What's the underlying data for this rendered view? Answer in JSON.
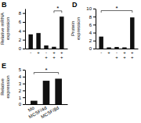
{
  "chart_data": [
    {
      "type": "bar",
      "title": "B",
      "categories": [
        "-",
        "+",
        "-\n+",
        "+\n+",
        "+\n+"
      ],
      "values": [
        3.2,
        3.5,
        0.7,
        0.4,
        7.2
      ],
      "color": "#111111",
      "y_label": "Relative mRNA\nexpression",
      "ylim": [
        0,
        9
      ],
      "yticks": [
        0,
        2,
        4,
        6,
        8
      ],
      "annotations": [
        {
          "text": "*",
          "from": 3,
          "to": 4,
          "y": 8.5
        }
      ]
    },
    {
      "type": "bar",
      "title": "D",
      "categories": [
        "-",
        "+",
        "-\n+",
        "+\n+",
        "+\n+"
      ],
      "values": [
        3.0,
        0.3,
        0.4,
        0.3,
        7.8
      ],
      "color": "#111111",
      "y_label": "Protein\nexpression",
      "ylim": [
        0,
        10
      ],
      "yticks": [
        0,
        2,
        4,
        6,
        8,
        10
      ],
      "annotations": [
        {
          "text": "*",
          "from": 0,
          "to": 4,
          "y": 9.5
        }
      ]
    },
    {
      "type": "bar",
      "title": "E",
      "categories": [
        "Mo",
        "MCSF/4d",
        "MCSF/8d"
      ],
      "values": [
        0.5,
        3.4,
        3.7
      ],
      "color": "#111111",
      "y_label": "Relative\nexpression",
      "ylim": [
        0,
        5
      ],
      "yticks": [
        0,
        1,
        2,
        3,
        4,
        5
      ],
      "annotations": [
        {
          "text": "*",
          "from": 0,
          "to": 2,
          "y": 4.6
        }
      ]
    }
  ]
}
